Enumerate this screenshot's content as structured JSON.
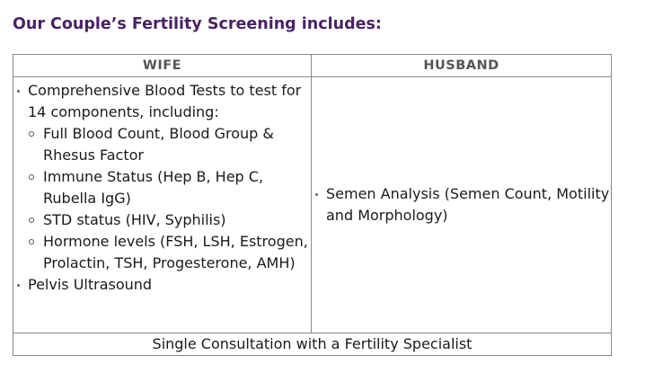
{
  "heading": "Our Couple’s Fertility Screening includes:",
  "table": {
    "headers": {
      "wife": "WIFE",
      "husband": "HUSBAND"
    },
    "wife": {
      "item1": "Comprehensive Blood Tests to test for 14 components, including:",
      "subitems": [
        "Full Blood Count, Blood Group & Rhesus Factor",
        "Immune Status (Hep B, Hep C, Rubella IgG)",
        "STD status (HIV, Syphilis)",
        "Hormone levels (FSH, LSH, Estrogen, Prolactin, TSH, Progesterone, AMH)"
      ],
      "item2": "Pelvis Ultrasound"
    },
    "husband": {
      "item1": "Semen Analysis (Semen Count, Motility and Morphology)"
    },
    "footer": "Single Consultation with a Fertility Specialist"
  }
}
